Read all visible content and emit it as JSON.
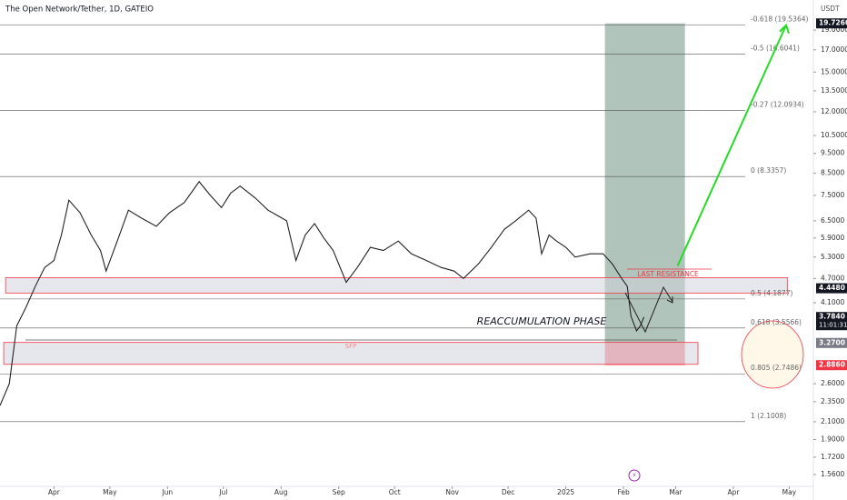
{
  "chart_data": {
    "type": "line",
    "title": "The Open Network/Tether, 1D, GATEIO",
    "y_unit": "USDT",
    "log_scale": true,
    "color": "#222222",
    "xlim": [
      -29,
      408
    ],
    "ylim": [
      1.46,
      22.5
    ],
    "xticks": [
      {
        "value": 0,
        "label": "Apr"
      },
      {
        "value": 30,
        "label": "May"
      },
      {
        "value": 61,
        "label": "Jun"
      },
      {
        "value": 91,
        "label": "Jul"
      },
      {
        "value": 122,
        "label": "Aug"
      },
      {
        "value": 153,
        "label": "Sep"
      },
      {
        "value": 183,
        "label": "Oct"
      },
      {
        "value": 214,
        "label": "Nov"
      },
      {
        "value": 244,
        "label": "Dec"
      },
      {
        "value": 275,
        "label": "2025"
      },
      {
        "value": 306,
        "label": "Feb"
      },
      {
        "value": 334,
        "label": "Mar"
      },
      {
        "value": 365,
        "label": "Apr"
      },
      {
        "value": 395,
        "label": "May"
      }
    ],
    "yticks": [
      {
        "value": 19,
        "label": "19.0000"
      },
      {
        "value": 17,
        "label": "17.0000"
      },
      {
        "value": 15,
        "label": "15.0000"
      },
      {
        "value": 13.5,
        "label": "13.5000"
      },
      {
        "value": 12,
        "label": "12.0000"
      },
      {
        "value": 10.5,
        "label": "10.5000"
      },
      {
        "value": 9.5,
        "label": "9.5000"
      },
      {
        "value": 8.5,
        "label": "8.5000"
      },
      {
        "value": 7.5,
        "label": "7.5000"
      },
      {
        "value": 6.5,
        "label": "6.5000"
      },
      {
        "value": 5.9,
        "label": "5.9000"
      },
      {
        "value": 5.3,
        "label": "5.3000"
      },
      {
        "value": 4.7,
        "label": "4.7000"
      },
      {
        "value": 4.1,
        "label": "4.1000"
      },
      {
        "value": 2.6,
        "label": "2.6000"
      },
      {
        "value": 2.35,
        "label": "2.3500"
      },
      {
        "value": 2.1,
        "label": "2.1000"
      },
      {
        "value": 1.9,
        "label": "1.9000"
      },
      {
        "value": 1.72,
        "label": "1.7200"
      },
      {
        "value": 1.56,
        "label": "1.5600"
      }
    ],
    "price_labels": [
      {
        "value": 19.726,
        "label": "19.7260",
        "color": "#131722"
      },
      {
        "value": 4.448,
        "label": "4.4480",
        "color": "#131722"
      },
      {
        "value": 3.784,
        "label": "3.7840",
        "color": "#131722",
        "timer": "11:01:31"
      },
      {
        "value": 3.27,
        "label": "3.2700",
        "color": "#787b86"
      },
      {
        "value": 2.886,
        "label": "2.8860",
        "color": "#f23645"
      }
    ],
    "x": [
      -29,
      -24,
      -20,
      -15,
      -10,
      -5,
      0,
      4,
      8,
      14,
      20,
      25,
      28,
      34,
      40,
      47,
      55,
      62,
      70,
      78,
      84,
      90,
      95,
      100,
      108,
      115,
      120,
      125,
      130,
      135,
      140,
      145,
      150,
      157,
      163,
      170,
      177,
      185,
      192,
      200,
      208,
      215,
      220,
      228,
      235,
      242,
      248,
      255,
      259,
      262,
      266,
      270,
      275,
      280,
      288,
      295,
      300,
      305,
      308,
      310,
      313,
      315,
      317
    ],
    "values": [
      2.3,
      2.6,
      3.6,
      4.0,
      4.5,
      5.0,
      5.2,
      6.0,
      7.3,
      6.8,
      6.0,
      5.5,
      4.9,
      5.8,
      6.9,
      6.6,
      6.3,
      6.8,
      7.2,
      8.1,
      7.5,
      7.0,
      7.6,
      7.9,
      7.4,
      6.9,
      6.7,
      6.5,
      5.2,
      6.0,
      6.4,
      5.9,
      5.5,
      4.6,
      5.0,
      5.6,
      5.5,
      5.8,
      5.4,
      5.2,
      5.0,
      4.9,
      4.7,
      5.1,
      5.6,
      6.2,
      6.5,
      6.9,
      6.6,
      5.4,
      6.0,
      5.8,
      5.6,
      5.3,
      5.4,
      5.4,
      5.1,
      4.7,
      4.5,
      3.8,
      3.5,
      3.6,
      3.784
    ],
    "fib_levels": [
      {
        "value": 19.5364,
        "label": "-0.618 (19.5364)"
      },
      {
        "value": 16.6041,
        "label": "-0.5 (16.6041)"
      },
      {
        "value": 12.0934,
        "label": "-0.27 (12.0934)"
      },
      {
        "value": 8.3357,
        "label": "0 (8.3357)"
      },
      {
        "value": 4.1877,
        "label": "0.5 (4.1877)"
      },
      {
        "value": 3.5566,
        "label": "0.618 (3.5566)"
      },
      {
        "value": 2.7486,
        "label": "0.805 (2.7486)"
      },
      {
        "value": 2.1008,
        "label": "1 (2.1008)"
      }
    ],
    "zones": [
      {
        "x": [
          -26,
          394
        ],
        "y": [
          4.33,
          4.72
        ]
      },
      {
        "x": [
          -27,
          346
        ],
        "y": [
          2.9,
          3.28
        ]
      }
    ],
    "position": {
      "x": [
        296,
        339
      ],
      "entry": 3.27,
      "target": 19.726,
      "stop": 2.886
    },
    "annotations": {
      "phase": "REACCUMULATION PHASE",
      "resistance": "LAST RESISTANCE",
      "sfp": "SFP"
    }
  }
}
